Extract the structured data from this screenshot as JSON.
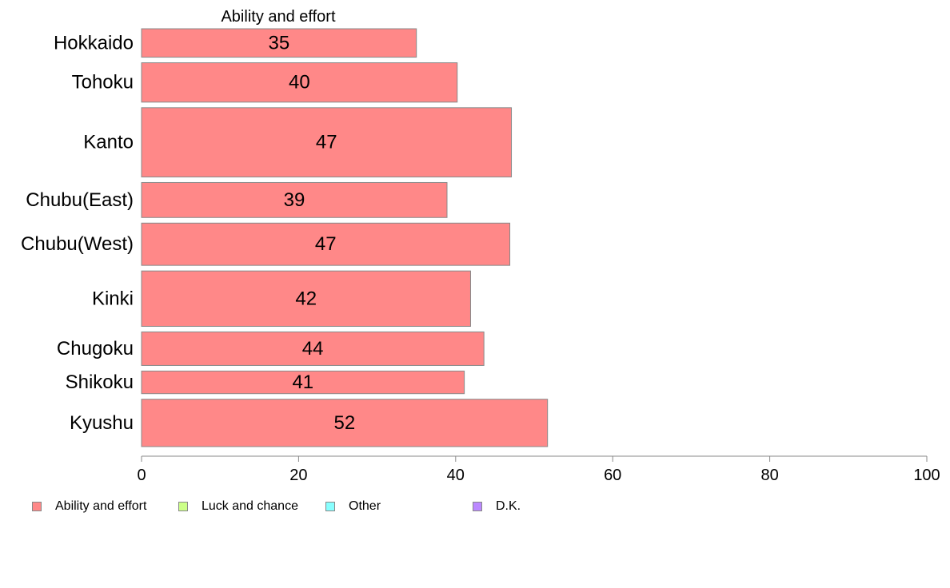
{
  "chart_data": {
    "type": "bar",
    "orientation": "horizontal",
    "title": "Ability and effort",
    "categories": [
      "Hokkaido",
      "Tohoku",
      "Kanto",
      "Chubu(East)",
      "Chubu(West)",
      "Kinki",
      "Chugoku",
      "Shikoku",
      "Kyushu"
    ],
    "series": [
      {
        "name": "Ability and effort",
        "color": "#ff8888",
        "values": [
          35,
          40.2,
          47.1,
          38.9,
          46.9,
          41.9,
          43.6,
          41.1,
          51.7
        ],
        "labels": [
          "35",
          "40",
          "47",
          "39",
          "47",
          "42",
          "44",
          "41",
          "52"
        ]
      }
    ],
    "category_weights": [
      0.78,
      1.08,
      1.9,
      0.96,
      1.16,
      1.52,
      0.92,
      0.62,
      1.3
    ],
    "xlim": [
      0,
      100
    ],
    "xticks": [
      0,
      20,
      40,
      60,
      80,
      100
    ],
    "tick_labels": [
      "0",
      "20",
      "40",
      "60",
      "80",
      "100"
    ],
    "grid": false,
    "legend_position": "bottom-left",
    "legend": [
      {
        "name": "Ability and effort",
        "color": "#ff8888"
      },
      {
        "name": "Luck and chance",
        "color": "#ccff88"
      },
      {
        "name": "Other",
        "color": "#88ffff"
      },
      {
        "name": "D.K.",
        "color": "#bb88ff"
      }
    ]
  }
}
